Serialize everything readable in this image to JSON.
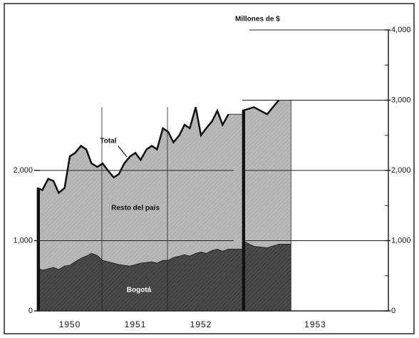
{
  "chart_data": {
    "type": "stacked_area",
    "y_axis_label": "Millones de $",
    "annotation": "Total",
    "x": [
      1950.0,
      1950.08,
      1950.17,
      1950.25,
      1950.33,
      1950.42,
      1950.5,
      1950.58,
      1950.67,
      1950.75,
      1950.83,
      1950.92,
      1951.0,
      1951.08,
      1951.17,
      1951.25,
      1951.33,
      1951.42,
      1951.5,
      1951.58,
      1951.67,
      1951.75,
      1951.83,
      1951.92,
      1952.0,
      1952.08,
      1952.17,
      1952.25,
      1952.33,
      1952.42,
      1952.5,
      1952.58,
      1952.67,
      1952.75,
      1952.83,
      1952.92,
      1953.0,
      1953.08,
      1953.17,
      1953.25
    ],
    "series": [
      {
        "name": "Bogotá",
        "color": "#4a4a4a",
        "values": [
          620,
          580,
          600,
          620,
          590,
          640,
          650,
          700,
          750,
          780,
          820,
          790,
          720,
          700,
          680,
          660,
          650,
          640,
          660,
          680,
          690,
          700,
          680,
          720,
          720,
          760,
          780,
          800,
          780,
          820,
          840,
          820,
          860,
          880,
          850,
          880,
          1000,
          920,
          900,
          950
        ]
      },
      {
        "name": "Resto del pais",
        "color": "#b8b8b8",
        "values": [
          1130,
          1140,
          1280,
          1230,
          1090,
          1110,
          1550,
          1550,
          1600,
          1520,
          1280,
          1260,
          1380,
          1300,
          1220,
          1290,
          1450,
          1560,
          1590,
          1470,
          1610,
          1650,
          1620,
          1880,
          1830,
          1640,
          1720,
          1850,
          1820,
          2080,
          1660,
          1780,
          1840,
          1970,
          1800,
          1920,
          1850,
          1980,
          1900,
          2050
        ]
      }
    ],
    "xlim": [
      1950,
      1954
    ],
    "xticks": [
      {
        "value": 1950.5,
        "label": "1950"
      },
      {
        "value": 1951.5,
        "label": "1951"
      },
      {
        "value": 1952.5,
        "label": "1952"
      },
      {
        "value": 1953.5,
        "label": "1953"
      }
    ],
    "ylim": [
      0,
      4000
    ],
    "yticks": [
      0,
      {
        "value": 1000,
        "label": "1,000"
      },
      {
        "value": 2000,
        "label": "2,000"
      }
    ],
    "y2lim": [
      0,
      4000
    ],
    "y2ticks": [
      0,
      {
        "value": 1000,
        "label": "1,000"
      },
      {
        "value": 2000,
        "label": "2,000"
      },
      {
        "value": 3000,
        "label": "3,000"
      },
      {
        "value": 4000,
        "label": "4,000"
      }
    ],
    "grid": true
  }
}
